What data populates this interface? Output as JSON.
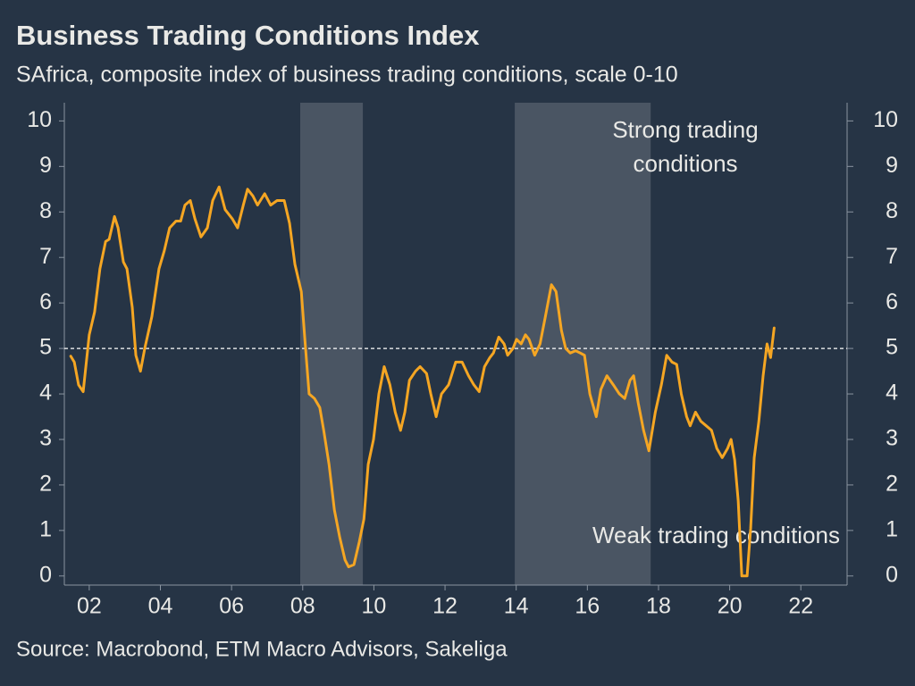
{
  "chart_data": {
    "type": "line",
    "title": "Business Trading Conditions Index",
    "subtitle": "SAfrica, composite index of business trading conditions, scale 0-10",
    "source": "Source: Macrobond, ETM Macro Advisors, Sakeliga",
    "annotation_top": [
      "Strong trading",
      "conditions"
    ],
    "annotation_bottom": "Weak trading conditions",
    "reference_line": 5,
    "shaded_regions": [
      [
        2007.93,
        2009.69
      ],
      [
        2013.96,
        2017.78
      ]
    ],
    "shade_color": "#4a5563",
    "xlim": [
      2001.3,
      2023.3
    ],
    "xticks": [
      {
        "value": 2002,
        "label": "02"
      },
      {
        "value": 2004,
        "label": "04"
      },
      {
        "value": 2006,
        "label": "06"
      },
      {
        "value": 2008,
        "label": "08"
      },
      {
        "value": 2010,
        "label": "10"
      },
      {
        "value": 2012,
        "label": "12"
      },
      {
        "value": 2014,
        "label": "14"
      },
      {
        "value": 2016,
        "label": "16"
      },
      {
        "value": 2018,
        "label": "18"
      },
      {
        "value": 2020,
        "label": "20"
      },
      {
        "value": 2022,
        "label": "22"
      }
    ],
    "ylim": [
      -0.2,
      10.4
    ],
    "yticks": [
      0,
      1,
      2,
      3,
      4,
      5,
      6,
      7,
      8,
      9,
      10
    ],
    "y2lim": [
      -0.2,
      10.4
    ],
    "y2ticks": [
      0,
      1,
      2,
      3,
      4,
      5,
      6,
      7,
      8,
      9,
      10
    ],
    "x": [
      2001.48,
      2001.58,
      2001.7,
      2001.83,
      2002.0,
      2002.15,
      2002.3,
      2002.46,
      2002.56,
      2002.71,
      2002.81,
      2002.96,
      2003.06,
      2003.21,
      2003.31,
      2003.44,
      2003.56,
      2003.76,
      2003.96,
      2004.11,
      2004.26,
      2004.44,
      2004.57,
      2004.69,
      2004.84,
      2004.97,
      2005.14,
      2005.32,
      2005.47,
      2005.65,
      2005.82,
      2006.02,
      2006.17,
      2006.33,
      2006.45,
      2006.6,
      2006.73,
      2006.93,
      2007.1,
      2007.28,
      2007.48,
      2007.63,
      2007.78,
      2007.96,
      2008.06,
      2008.18,
      2008.33,
      2008.48,
      2008.59,
      2008.74,
      2008.89,
      2009.04,
      2009.19,
      2009.29,
      2009.44,
      2009.59,
      2009.72,
      2009.84,
      2009.99,
      2010.14,
      2010.29,
      2010.45,
      2010.6,
      2010.75,
      2010.87,
      2011.0,
      2011.17,
      2011.3,
      2011.48,
      2011.6,
      2011.75,
      2011.9,
      2012.1,
      2012.3,
      2012.48,
      2012.66,
      2012.81,
      2012.96,
      2013.11,
      2013.26,
      2013.36,
      2013.51,
      2013.66,
      2013.76,
      2013.91,
      2014.01,
      2014.14,
      2014.26,
      2014.36,
      2014.52,
      2014.67,
      2014.82,
      2014.99,
      2015.12,
      2015.27,
      2015.39,
      2015.52,
      2015.67,
      2015.8,
      2015.92,
      2016.07,
      2016.25,
      2016.38,
      2016.55,
      2016.73,
      2016.9,
      2017.05,
      2017.2,
      2017.3,
      2017.43,
      2017.58,
      2017.73,
      2017.91,
      2018.08,
      2018.23,
      2018.38,
      2018.51,
      2018.64,
      2018.79,
      2018.89,
      2019.04,
      2019.19,
      2019.34,
      2019.49,
      2019.64,
      2019.79,
      2019.94,
      2020.04,
      2020.14,
      2020.24,
      2020.34,
      2020.49,
      2020.59,
      2020.69,
      2020.82,
      2020.94,
      2021.05,
      2021.15,
      2021.25
    ],
    "series": [
      {
        "color": "#f5a623",
        "values": [
          4.83,
          4.7,
          4.2,
          4.05,
          5.3,
          5.8,
          6.75,
          7.35,
          7.4,
          7.9,
          7.65,
          6.9,
          6.75,
          5.9,
          4.85,
          4.5,
          5.0,
          5.7,
          6.75,
          7.15,
          7.65,
          7.8,
          7.8,
          8.15,
          8.25,
          7.85,
          7.45,
          7.65,
          8.25,
          8.55,
          8.05,
          7.85,
          7.65,
          8.15,
          8.5,
          8.35,
          8.15,
          8.4,
          8.15,
          8.25,
          8.25,
          7.75,
          6.85,
          6.25,
          5.2,
          4.0,
          3.9,
          3.7,
          3.2,
          2.45,
          1.45,
          0.85,
          0.35,
          0.2,
          0.25,
          0.75,
          1.25,
          2.45,
          3.0,
          4.0,
          4.6,
          4.2,
          3.6,
          3.2,
          3.6,
          4.3,
          4.5,
          4.6,
          4.45,
          4.0,
          3.5,
          4.0,
          4.2,
          4.7,
          4.7,
          4.4,
          4.2,
          4.05,
          4.6,
          4.8,
          4.9,
          5.25,
          5.1,
          4.85,
          5.0,
          5.2,
          5.1,
          5.3,
          5.2,
          4.85,
          5.1,
          5.7,
          6.4,
          6.25,
          5.4,
          5.0,
          4.9,
          4.95,
          4.9,
          4.85,
          4.0,
          3.5,
          4.1,
          4.4,
          4.2,
          4.0,
          3.9,
          4.3,
          4.4,
          3.8,
          3.2,
          2.75,
          3.6,
          4.2,
          4.85,
          4.7,
          4.65,
          4.0,
          3.5,
          3.3,
          3.6,
          3.4,
          3.3,
          3.2,
          2.8,
          2.6,
          2.8,
          3.0,
          2.55,
          1.65,
          0.0,
          0.0,
          1.05,
          2.6,
          3.4,
          4.4,
          5.1,
          4.8,
          5.45
        ]
      }
    ]
  }
}
